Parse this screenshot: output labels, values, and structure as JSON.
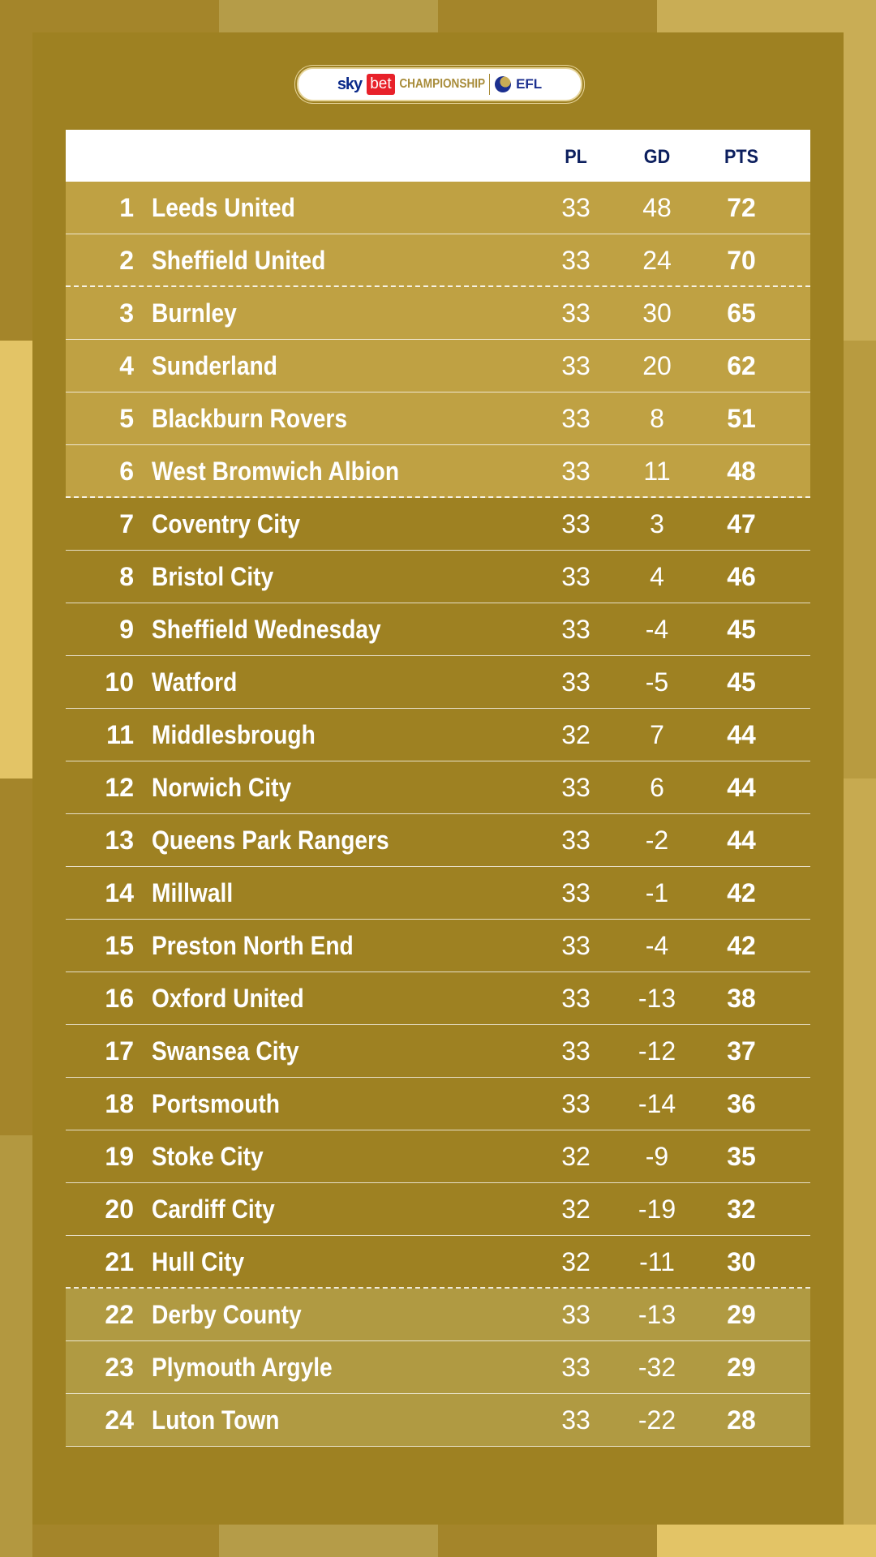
{
  "logo": {
    "sponsor1": "sky",
    "sponsor2": "bet",
    "league": "CHAMPIONSHIP",
    "org": "EFL"
  },
  "colors": {
    "background": "#9e8122",
    "promotion_rows": "#bfa143",
    "relegation_rows": "#b09a42",
    "header_text": "#0c1f5e"
  },
  "header": {
    "pl": "PL",
    "gd": "GD",
    "pts": "PTS"
  },
  "rows": [
    {
      "pos": "1",
      "team": "Leeds United",
      "pl": "33",
      "gd": "48",
      "pts": "72"
    },
    {
      "pos": "2",
      "team": "Sheffield United",
      "pl": "33",
      "gd": "24",
      "pts": "70"
    },
    {
      "pos": "3",
      "team": "Burnley",
      "pl": "33",
      "gd": "30",
      "pts": "65"
    },
    {
      "pos": "4",
      "team": "Sunderland",
      "pl": "33",
      "gd": "20",
      "pts": "62"
    },
    {
      "pos": "5",
      "team": "Blackburn Rovers",
      "pl": "33",
      "gd": "8",
      "pts": "51"
    },
    {
      "pos": "6",
      "team": "West Bromwich Albion",
      "pl": "33",
      "gd": "11",
      "pts": "48"
    },
    {
      "pos": "7",
      "team": "Coventry City",
      "pl": "33",
      "gd": "3",
      "pts": "47"
    },
    {
      "pos": "8",
      "team": "Bristol City",
      "pl": "33",
      "gd": "4",
      "pts": "46"
    },
    {
      "pos": "9",
      "team": "Sheffield Wednesday",
      "pl": "33",
      "gd": "-4",
      "pts": "45"
    },
    {
      "pos": "10",
      "team": "Watford",
      "pl": "33",
      "gd": "-5",
      "pts": "45"
    },
    {
      "pos": "11",
      "team": "Middlesbrough",
      "pl": "32",
      "gd": "7",
      "pts": "44"
    },
    {
      "pos": "12",
      "team": "Norwich City",
      "pl": "33",
      "gd": "6",
      "pts": "44"
    },
    {
      "pos": "13",
      "team": "Queens Park Rangers",
      "pl": "33",
      "gd": "-2",
      "pts": "44"
    },
    {
      "pos": "14",
      "team": "Millwall",
      "pl": "33",
      "gd": "-1",
      "pts": "42"
    },
    {
      "pos": "15",
      "team": "Preston North End",
      "pl": "33",
      "gd": "-4",
      "pts": "42"
    },
    {
      "pos": "16",
      "team": "Oxford United",
      "pl": "33",
      "gd": "-13",
      "pts": "38"
    },
    {
      "pos": "17",
      "team": "Swansea City",
      "pl": "33",
      "gd": "-12",
      "pts": "37"
    },
    {
      "pos": "18",
      "team": "Portsmouth",
      "pl": "33",
      "gd": "-14",
      "pts": "36"
    },
    {
      "pos": "19",
      "team": "Stoke City",
      "pl": "32",
      "gd": "-9",
      "pts": "35"
    },
    {
      "pos": "20",
      "team": "Cardiff City",
      "pl": "32",
      "gd": "-19",
      "pts": "32"
    },
    {
      "pos": "21",
      "team": "Hull City",
      "pl": "32",
      "gd": "-11",
      "pts": "30"
    },
    {
      "pos": "22",
      "team": "Derby County",
      "pl": "33",
      "gd": "-13",
      "pts": "29"
    },
    {
      "pos": "23",
      "team": "Plymouth Argyle",
      "pl": "33",
      "gd": "-32",
      "pts": "29"
    },
    {
      "pos": "24",
      "team": "Luton Town",
      "pl": "33",
      "gd": "-22",
      "pts": "28"
    }
  ]
}
